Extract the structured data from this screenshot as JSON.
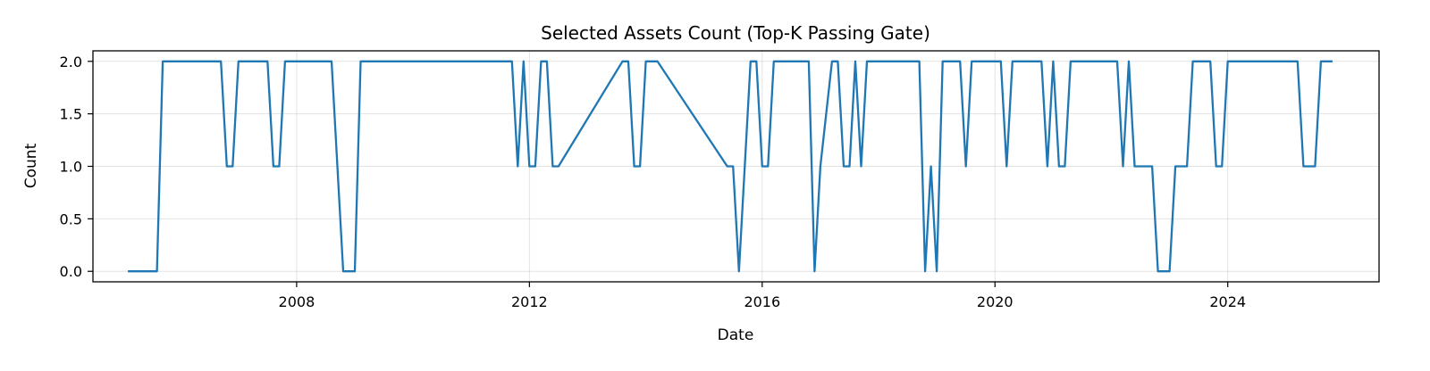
{
  "chart_data": {
    "type": "line",
    "title": "Selected Assets Count (Top-K Passing Gate)",
    "xlabel": "Date",
    "ylabel": "Count",
    "xlim": [
      2004.5,
      2026.6
    ],
    "ylim": [
      -0.1,
      2.1
    ],
    "x_ticks": [
      2008,
      2012,
      2016,
      2020,
      2024
    ],
    "y_ticks": [
      0.0,
      0.5,
      1.0,
      1.5,
      2.0
    ],
    "grid": true,
    "line_color": "#1f77b4",
    "series": [
      {
        "name": "",
        "x": [
          2005.1,
          2005.6,
          2005.7,
          2006.7,
          2006.8,
          2006.9,
          2007.0,
          2007.5,
          2007.6,
          2007.7,
          2007.8,
          2008.6,
          2008.8,
          2008.9,
          2009.0,
          2009.1,
          2011.7,
          2011.8,
          2011.9,
          2012.0,
          2012.1,
          2012.2,
          2012.3,
          2012.4,
          2012.5,
          2013.6,
          2013.7,
          2013.8,
          2013.9,
          2014.0,
          2014.1,
          2014.2,
          2015.4,
          2015.5,
          2015.6,
          2015.7,
          2015.8,
          2015.9,
          2016.0,
          2016.1,
          2016.2,
          2016.3,
          2016.8,
          2016.9,
          2017.0,
          2017.2,
          2017.3,
          2017.4,
          2017.5,
          2017.6,
          2017.7,
          2017.8,
          2018.7,
          2018.8,
          2018.9,
          2019.0,
          2019.1,
          2019.4,
          2019.5,
          2019.6,
          2020.1,
          2020.2,
          2020.3,
          2020.8,
          2020.9,
          2021.0,
          2021.1,
          2021.2,
          2021.3,
          2022.1,
          2022.2,
          2022.3,
          2022.4,
          2022.7,
          2022.8,
          2022.9,
          2023.0,
          2023.1,
          2023.3,
          2023.4,
          2023.7,
          2023.8,
          2023.9,
          2024.0,
          2025.2,
          2025.3,
          2025.5,
          2025.6,
          2025.8
        ],
        "values": [
          0,
          0,
          2,
          2,
          1,
          1,
          2,
          2,
          1,
          1,
          2,
          2,
          0,
          0,
          0,
          2,
          2,
          1,
          2,
          1,
          1,
          2,
          2,
          1,
          1,
          2,
          2,
          1,
          1,
          2,
          2,
          2,
          1,
          1,
          0,
          1,
          2,
          2,
          1,
          1,
          2,
          2,
          2,
          0,
          1,
          2,
          2,
          1,
          1,
          2,
          1,
          2,
          2,
          0,
          1,
          0,
          2,
          2,
          1,
          2,
          2,
          1,
          2,
          2,
          1,
          2,
          1,
          1,
          2,
          2,
          1,
          2,
          1,
          1,
          0,
          0,
          0,
          1,
          1,
          2,
          2,
          1,
          1,
          2,
          2,
          1,
          1,
          2,
          2
        ]
      }
    ]
  }
}
